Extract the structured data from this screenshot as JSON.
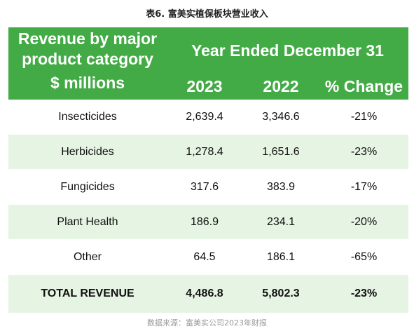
{
  "caption": "表6. 富美实植保板块营业收入",
  "header": {
    "category_line1": "Revenue by major",
    "category_line2": "product category",
    "category_line3": "$ millions",
    "period": "Year Ended December 31",
    "col_2023": "2023",
    "col_2022": "2022",
    "col_change": "% Change"
  },
  "rows": [
    {
      "category": "Insecticides",
      "y2023": "2,639.4",
      "y2022": "3,346.6",
      "change": "-21%"
    },
    {
      "category": "Herbicides",
      "y2023": "1,278.4",
      "y2022": "1,651.6",
      "change": "-23%"
    },
    {
      "category": "Fungicides",
      "y2023": "317.6",
      "y2022": "383.9",
      "change": "-17%"
    },
    {
      "category": "Plant Health",
      "y2023": "186.9",
      "y2022": "234.1",
      "change": "-20%"
    },
    {
      "category": "Other",
      "y2023": "64.5",
      "y2022": "186.1",
      "change": "-65%"
    }
  ],
  "total": {
    "category": "TOTAL REVENUE",
    "y2023": "4,486.8",
    "y2022": "5,802.3",
    "change": "-23%"
  },
  "source": "数据来源：富美实公司2023年财报",
  "colors": {
    "header_green": "#43ab45",
    "row_alt": "#e6f4e3"
  }
}
